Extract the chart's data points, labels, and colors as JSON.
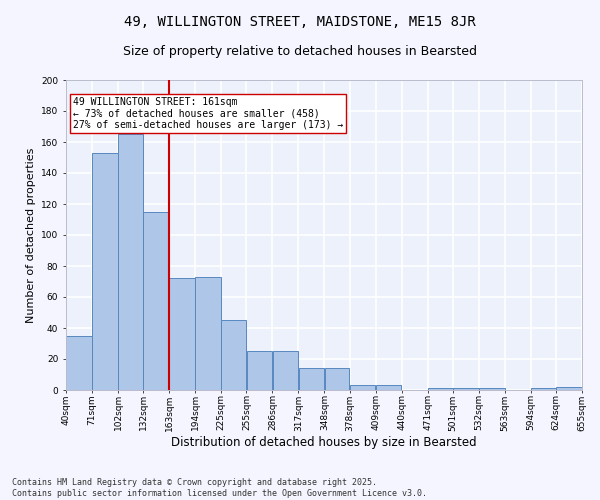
{
  "title": "49, WILLINGTON STREET, MAIDSTONE, ME15 8JR",
  "subtitle": "Size of property relative to detached houses in Bearsted",
  "xlabel": "Distribution of detached houses by size in Bearsted",
  "ylabel": "Number of detached properties",
  "bar_left_edges": [
    40,
    71,
    102,
    132,
    163,
    194,
    225,
    255,
    286,
    317,
    348,
    378,
    409,
    440,
    471,
    501,
    532,
    563,
    594,
    624
  ],
  "bar_widths": [
    31,
    31,
    30,
    31,
    31,
    31,
    30,
    31,
    31,
    31,
    30,
    31,
    31,
    31,
    30,
    31,
    31,
    31,
    30,
    31
  ],
  "bar_heights": [
    35,
    153,
    165,
    115,
    72,
    73,
    45,
    25,
    25,
    14,
    14,
    3,
    3,
    0,
    1,
    1,
    1,
    0,
    1,
    2
  ],
  "bar_color": "#aec6e8",
  "bar_edgecolor": "#5888bf",
  "background_color": "#edf1fb",
  "grid_color": "#ffffff",
  "vline_x": 163,
  "vline_color": "#cc0000",
  "annotation_text": "49 WILLINGTON STREET: 161sqm\n← 73% of detached houses are smaller (458)\n27% of semi-detached houses are larger (173) →",
  "annotation_box_color": "#ffffff",
  "annotation_box_edgecolor": "#cc0000",
  "ylim": [
    0,
    200
  ],
  "yticks": [
    0,
    20,
    40,
    60,
    80,
    100,
    120,
    140,
    160,
    180,
    200
  ],
  "tick_labels": [
    "40sqm",
    "71sqm",
    "102sqm",
    "132sqm",
    "163sqm",
    "194sqm",
    "225sqm",
    "255sqm",
    "286sqm",
    "317sqm",
    "348sqm",
    "378sqm",
    "409sqm",
    "440sqm",
    "471sqm",
    "501sqm",
    "532sqm",
    "563sqm",
    "594sqm",
    "624sqm",
    "655sqm"
  ],
  "footer": "Contains HM Land Registry data © Crown copyright and database right 2025.\nContains public sector information licensed under the Open Government Licence v3.0.",
  "title_fontsize": 10,
  "subtitle_fontsize": 9,
  "xlabel_fontsize": 8.5,
  "ylabel_fontsize": 8,
  "tick_fontsize": 6.5,
  "annotation_fontsize": 7,
  "footer_fontsize": 6
}
